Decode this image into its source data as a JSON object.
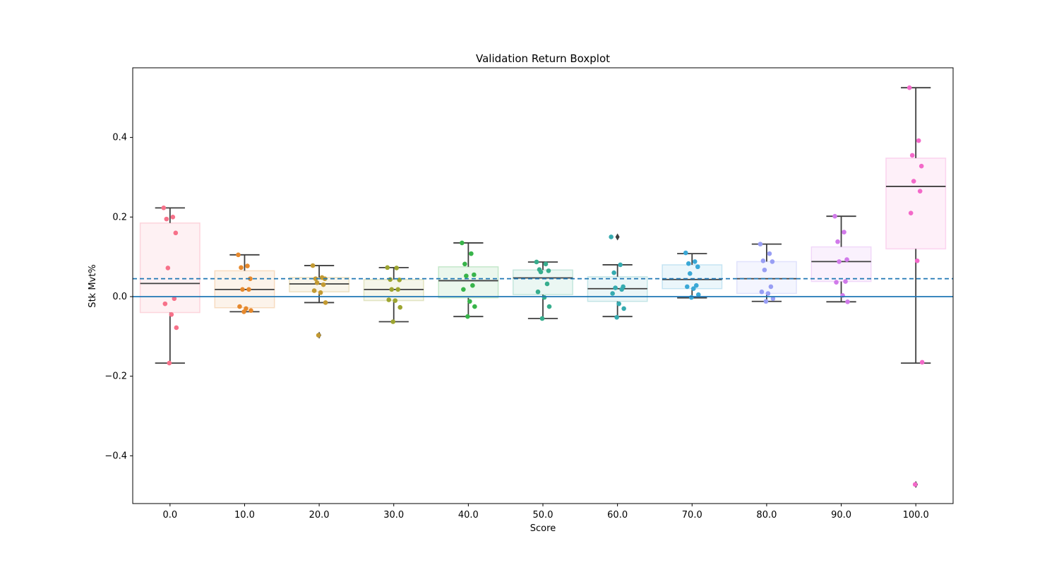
{
  "chart_data": {
    "type": "boxplot",
    "title": "Validation Return Boxplot",
    "xlabel": "Score",
    "ylabel": "Stk Mvt%",
    "categories": [
      "0.0",
      "10.0",
      "20.0",
      "30.0",
      "40.0",
      "50.0",
      "60.0",
      "70.0",
      "80.0",
      "90.0",
      "100.0"
    ],
    "ylim": [
      -0.52,
      0.575
    ],
    "yticks": [
      {
        "value": -0.4,
        "label": "−0.4"
      },
      {
        "value": -0.2,
        "label": "−0.2"
      },
      {
        "value": 0.0,
        "label": "0.0"
      },
      {
        "value": 0.2,
        "label": "0.2"
      },
      {
        "value": 0.4,
        "label": "0.4"
      }
    ],
    "grid": false,
    "reference_lines": [
      {
        "value": 0.045,
        "style": "dashed",
        "color": "#1f77b4"
      },
      {
        "value": 0.0,
        "style": "solid",
        "color": "#1f77b4"
      }
    ],
    "boxes": [
      {
        "category": "0.0",
        "color": "#f77189",
        "q1": -0.04,
        "median": 0.033,
        "q3": 0.185,
        "whisker_low": -0.167,
        "whisker_high": 0.223,
        "outliers": [],
        "points": [
          0.223,
          0.2,
          0.195,
          0.16,
          0.072,
          -0.005,
          -0.018,
          -0.045,
          -0.078,
          -0.167
        ]
      },
      {
        "category": "10.0",
        "color": "#e6892d",
        "q1": -0.028,
        "median": 0.018,
        "q3": 0.065,
        "whisker_low": -0.038,
        "whisker_high": 0.105,
        "outliers": [],
        "points": [
          0.105,
          0.077,
          0.073,
          0.045,
          0.018,
          0.018,
          -0.025,
          -0.03,
          -0.035,
          -0.038
        ]
      },
      {
        "category": "20.0",
        "color": "#c39a32",
        "q1": 0.012,
        "median": 0.032,
        "q3": 0.048,
        "whisker_low": -0.015,
        "whisker_high": 0.078,
        "outliers": [
          -0.097
        ],
        "points": [
          0.078,
          0.048,
          0.045,
          0.045,
          0.035,
          0.03,
          0.015,
          0.01,
          -0.015,
          -0.097
        ]
      },
      {
        "category": "30.0",
        "color": "#9da530",
        "q1": -0.01,
        "median": 0.018,
        "q3": 0.043,
        "whisker_low": -0.063,
        "whisker_high": 0.073,
        "outliers": [],
        "points": [
          0.073,
          0.072,
          0.043,
          0.042,
          0.018,
          0.018,
          -0.008,
          -0.01,
          -0.027,
          -0.063
        ]
      },
      {
        "category": "40.0",
        "color": "#38b44a",
        "q1": -0.003,
        "median": 0.04,
        "q3": 0.075,
        "whisker_low": -0.05,
        "whisker_high": 0.135,
        "outliers": [],
        "points": [
          0.135,
          0.108,
          0.082,
          0.055,
          0.052,
          0.028,
          0.018,
          -0.012,
          -0.025,
          -0.05
        ]
      },
      {
        "category": "50.0",
        "color": "#36ad8d",
        "q1": 0.005,
        "median": 0.047,
        "q3": 0.067,
        "whisker_low": -0.055,
        "whisker_high": 0.087,
        "outliers": [],
        "points": [
          0.087,
          0.082,
          0.068,
          0.065,
          0.062,
          0.032,
          0.012,
          -0.002,
          -0.025,
          -0.055
        ]
      },
      {
        "category": "60.0",
        "color": "#36abb0",
        "q1": -0.012,
        "median": 0.02,
        "q3": 0.05,
        "whisker_low": -0.05,
        "whisker_high": 0.08,
        "outliers": [
          0.15
        ],
        "points": [
          0.15,
          0.08,
          0.06,
          0.025,
          0.022,
          0.018,
          0.008,
          -0.018,
          -0.03,
          -0.052
        ]
      },
      {
        "category": "70.0",
        "color": "#3aa8d6",
        "q1": 0.02,
        "median": 0.043,
        "q3": 0.08,
        "whisker_low": -0.003,
        "whisker_high": 0.108,
        "outliers": [],
        "points": [
          0.11,
          0.088,
          0.083,
          0.075,
          0.058,
          0.028,
          0.025,
          0.02,
          0.005,
          -0.002
        ]
      },
      {
        "category": "80.0",
        "color": "#989ef4",
        "q1": 0.008,
        "median": 0.045,
        "q3": 0.088,
        "whisker_low": -0.012,
        "whisker_high": 0.132,
        "outliers": [],
        "points": [
          0.132,
          0.108,
          0.09,
          0.088,
          0.067,
          0.025,
          0.012,
          0.008,
          -0.005,
          -0.012
        ]
      },
      {
        "category": "90.0",
        "color": "#d17aea",
        "q1": 0.038,
        "median": 0.088,
        "q3": 0.125,
        "whisker_low": -0.013,
        "whisker_high": 0.202,
        "outliers": [],
        "points": [
          0.202,
          0.162,
          0.138,
          0.093,
          0.088,
          0.038,
          0.036,
          0.003,
          -0.013
        ]
      },
      {
        "category": "100.0",
        "color": "#f369c9",
        "q1": 0.12,
        "median": 0.277,
        "q3": 0.348,
        "whisker_low": -0.167,
        "whisker_high": 0.525,
        "outliers": [
          -0.472
        ],
        "points": [
          0.525,
          0.392,
          0.355,
          0.328,
          0.29,
          0.265,
          0.21,
          0.09,
          -0.165,
          -0.472
        ]
      }
    ]
  }
}
